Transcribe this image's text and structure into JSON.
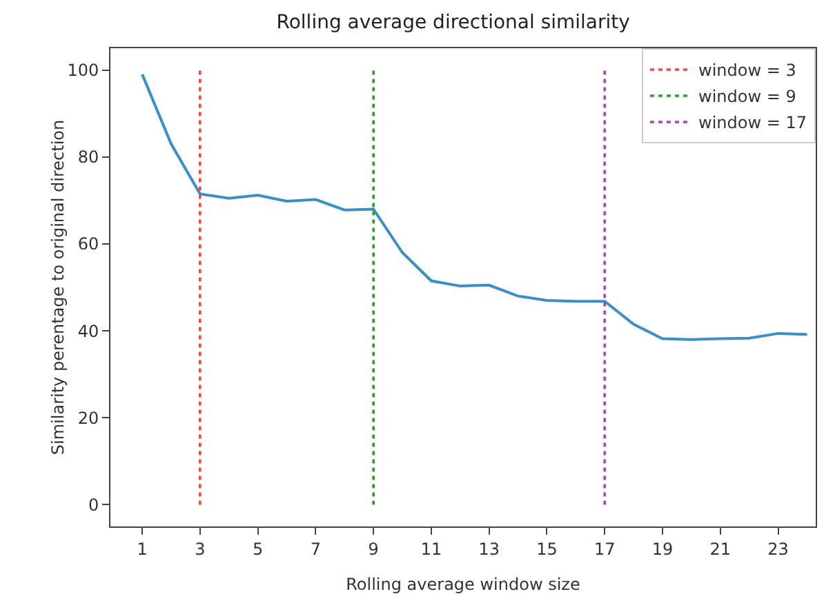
{
  "chart_data": {
    "type": "line",
    "title": "Rolling average directional similarity",
    "xlabel": "Rolling average window size",
    "ylabel": "Similarity perentage to original direction",
    "x": [
      1,
      2,
      3,
      4,
      5,
      6,
      7,
      8,
      9,
      10,
      11,
      12,
      13,
      14,
      15,
      16,
      17,
      18,
      19,
      20,
      21,
      22,
      23,
      24
    ],
    "series": [
      {
        "color": "#3a8fc8",
        "values": [
          99,
          83,
          71.5,
          70.5,
          71.2,
          69.8,
          70.2,
          67.8,
          68,
          58,
          51.5,
          50.3,
          50.5,
          48,
          47,
          46.8,
          46.8,
          41.5,
          38.2,
          38,
          38.2,
          38.3,
          39.4,
          39.2
        ]
      },
      {
        "name": "window = 3",
        "color": "#ff4040",
        "line_style": "dotted",
        "x": [
          3,
          3
        ],
        "values": [
          0,
          100
        ]
      },
      {
        "name": "window = 9",
        "color": "#2ca02c",
        "line_style": "dotted",
        "x": [
          9,
          9
        ],
        "values": [
          0,
          100
        ]
      },
      {
        "name": "window = 17",
        "color": "#b040c0",
        "line_style": "dotted",
        "x": [
          17,
          17
        ],
        "values": [
          0,
          100
        ]
      }
    ],
    "xlim": [
      -0.1,
      24.3
    ],
    "ylim": [
      -5,
      105
    ],
    "xticks": [
      1,
      3,
      5,
      7,
      9,
      11,
      13,
      15,
      17,
      19,
      21,
      23
    ],
    "yticks": [
      0,
      20,
      40,
      60,
      80,
      100
    ],
    "legend": "top right"
  }
}
